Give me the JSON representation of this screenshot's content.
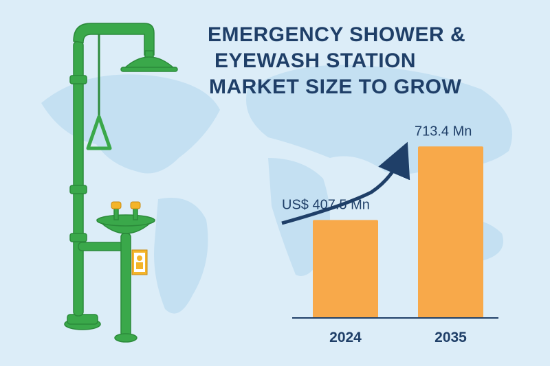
{
  "title": {
    "line1": "EMERGENCY SHOWER &",
    "line2": "EYEWASH STATION",
    "line3": "MARKET SIZE TO GROW"
  },
  "colors": {
    "background": "#dcedf8",
    "map": "#c4e0f2",
    "bar": "#f8a94a",
    "text": "#1f3f68",
    "station_green": "#3aa84a"
  },
  "icons": [
    "emergency-shower-station-icon",
    "eyewash-sign-icon",
    "growth-arrow-icon"
  ],
  "chart_data": {
    "type": "bar",
    "categories": [
      "2024",
      "2035"
    ],
    "values": [
      407.5,
      713.4
    ],
    "value_labels": [
      "US$ 407.5 Mn",
      "713.4 Mn"
    ],
    "title": "EMERGENCY SHOWER & EYEWASH STATION MARKET SIZE TO GROW",
    "xlabel": "",
    "ylabel": "",
    "ylim": [
      0,
      800
    ],
    "grid": false,
    "legend": "none",
    "annotations": [
      "upward-arrow"
    ]
  }
}
